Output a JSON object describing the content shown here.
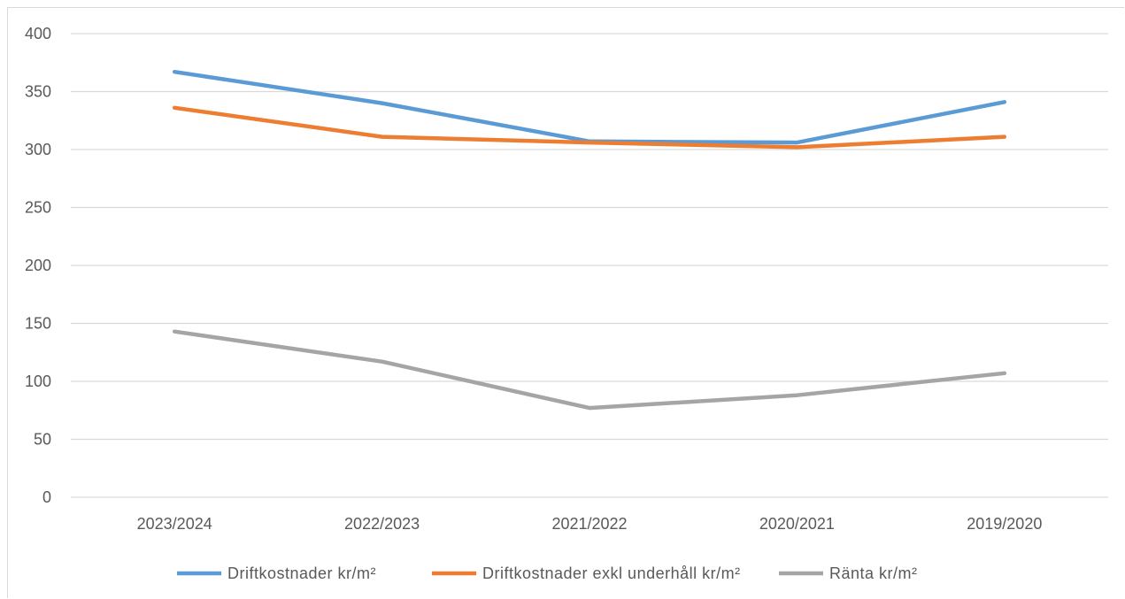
{
  "chart_data": {
    "type": "line",
    "categories": [
      "2023/2024",
      "2022/2023",
      "2021/2022",
      "2020/2021",
      "2019/2020"
    ],
    "series": [
      {
        "name": "Driftkostnader kr/m²",
        "color": "#5b9bd5",
        "values": [
          367,
          340,
          307,
          306,
          341
        ]
      },
      {
        "name": "Driftkostnader exkl underhåll kr/m²",
        "color": "#ed7d31",
        "values": [
          336,
          311,
          306,
          302,
          311
        ]
      },
      {
        "name": "Ränta kr/m²",
        "color": "#a5a5a5",
        "values": [
          143,
          117,
          77,
          88,
          107
        ]
      }
    ],
    "yticks": [
      "0",
      "50",
      "100",
      "150",
      "200",
      "250",
      "300",
      "350",
      "400"
    ],
    "ylim": [
      0,
      400
    ],
    "grid": true,
    "legend_position": "bottom"
  }
}
